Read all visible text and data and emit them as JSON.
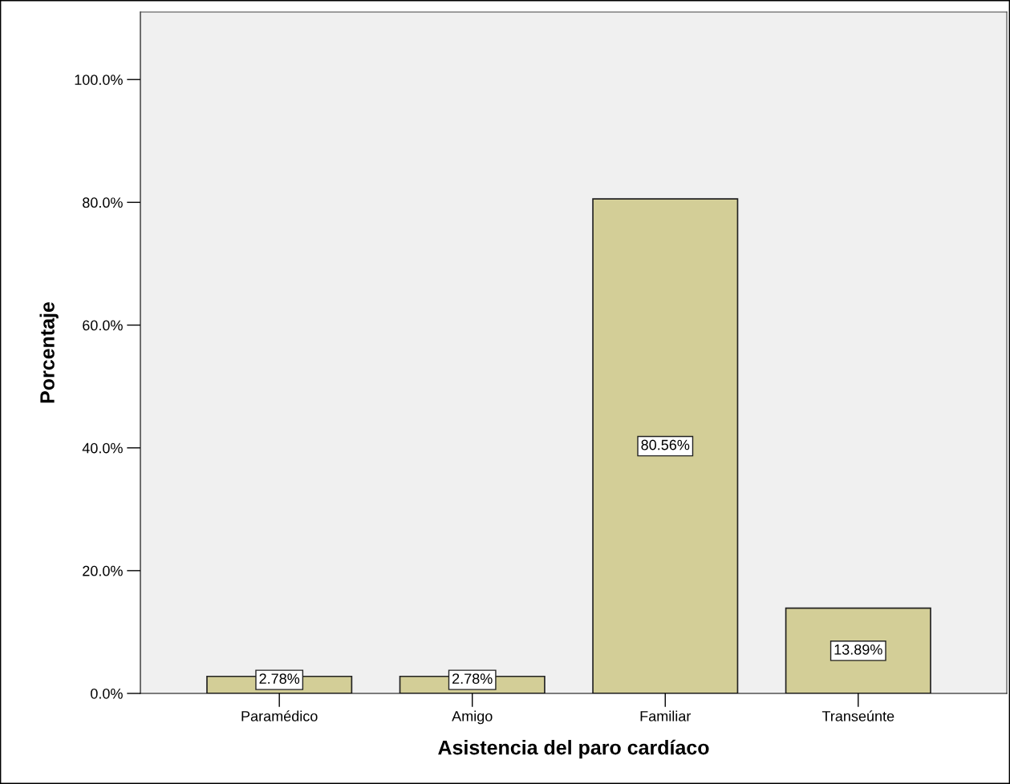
{
  "chart_data": {
    "type": "bar",
    "xlabel": "Asistencia del paro cardíaco",
    "ylabel": "Porcentaje",
    "categories": [
      "Paramédico",
      "Amigo",
      "Familiar",
      "Transeúnte"
    ],
    "values": [
      2.78,
      2.78,
      80.56,
      13.89
    ],
    "value_labels": [
      "2.78%",
      "2.78%",
      "80.56%",
      "13.89%"
    ],
    "color": "#d3ce97",
    "ylim": [
      0,
      111
    ],
    "yticks": [
      {
        "value": 0,
        "label": "0.0%"
      },
      {
        "value": 20,
        "label": "20.0%"
      },
      {
        "value": 40,
        "label": "40.0%"
      },
      {
        "value": 60,
        "label": "60.0%"
      },
      {
        "value": 80,
        "label": "80.0%"
      },
      {
        "value": 100,
        "label": "100.0%"
      }
    ],
    "grid": false
  }
}
